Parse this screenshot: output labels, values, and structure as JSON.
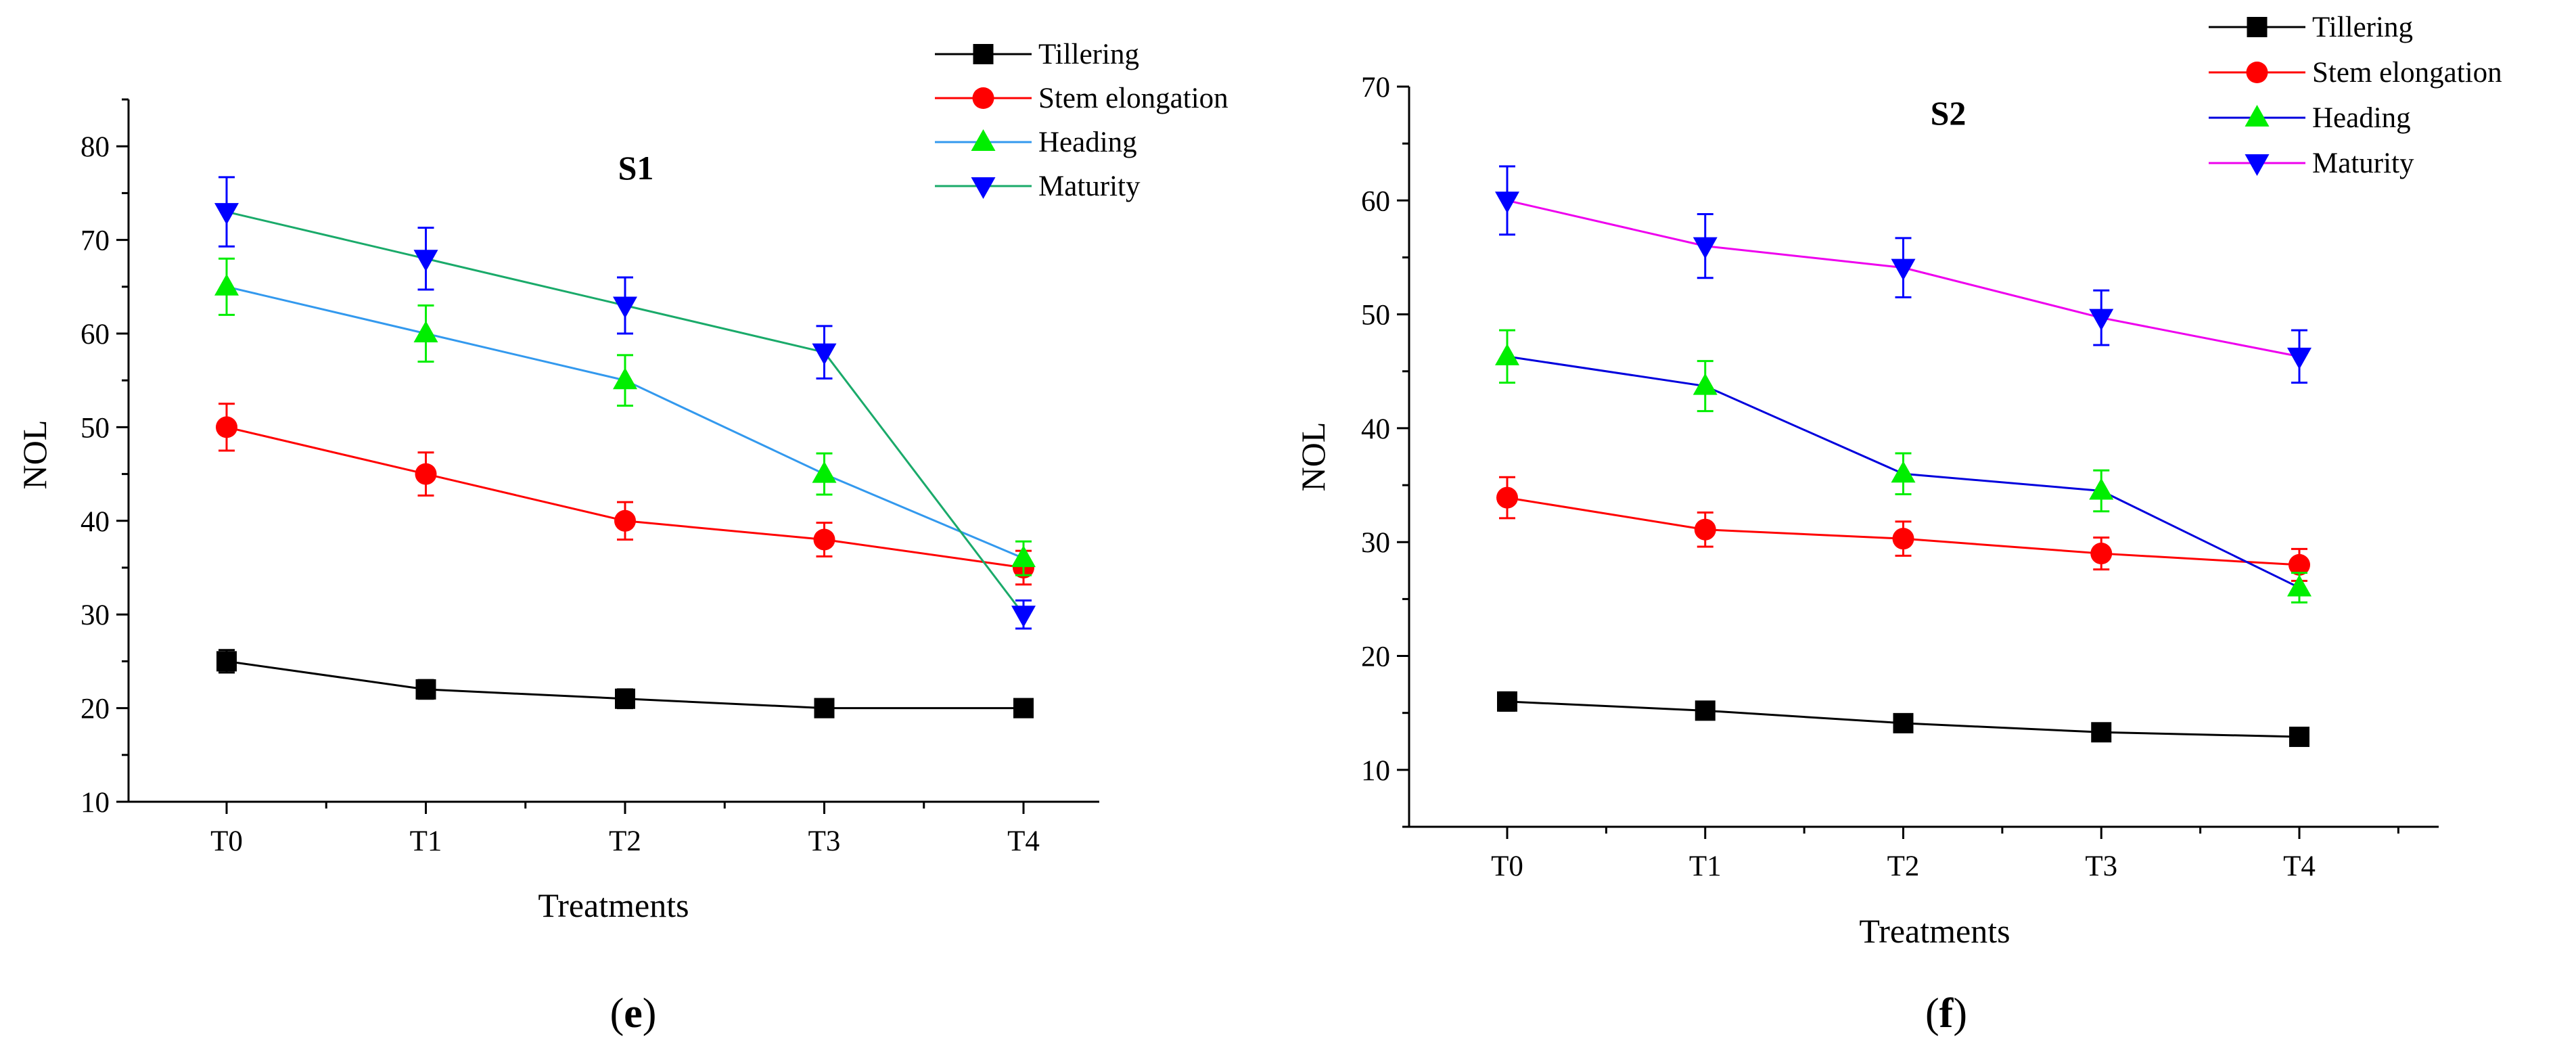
{
  "chart_data": [
    {
      "type": "line",
      "title": "S1",
      "panel_label": [
        "(",
        "e",
        ")"
      ],
      "xlabel": "Treatments",
      "ylabel": "NOL",
      "ylim": [
        10,
        85
      ],
      "yticks": [
        10,
        20,
        30,
        40,
        50,
        60,
        70,
        80
      ],
      "categories": [
        "T0",
        "T1",
        "T2",
        "T3",
        "T4"
      ],
      "error_bars": true,
      "legend_position": "top-right outside",
      "series": [
        {
          "name": "Tillering",
          "marker": "square",
          "color": "#000000",
          "marker_color": "#000000",
          "values": [
            25,
            22,
            21,
            20,
            20
          ],
          "errors": [
            1.2,
            1.0,
            1.0,
            0.8,
            0.8
          ]
        },
        {
          "name": "Stem elongation",
          "marker": "circle",
          "color": "#ff0000",
          "marker_color": "#ff0000",
          "values": [
            50,
            45,
            40,
            38,
            35
          ],
          "errors": [
            2.5,
            2.3,
            2.0,
            1.8,
            1.8
          ]
        },
        {
          "name": "Heading",
          "marker": "triangle-up",
          "color": "#3399ee",
          "marker_color": "#00ee00",
          "values": [
            65,
            60,
            55,
            45,
            36
          ],
          "errors": [
            3.0,
            3.0,
            2.7,
            2.2,
            1.8
          ]
        },
        {
          "name": "Maturity",
          "marker": "triangle-down",
          "color": "#1aaa6a",
          "marker_color": "#0000ff",
          "values": [
            73,
            68,
            63,
            58,
            30
          ],
          "errors": [
            3.7,
            3.3,
            3.0,
            2.8,
            1.5
          ]
        }
      ]
    },
    {
      "type": "line",
      "title": "S2",
      "panel_label": [
        "(",
        "f",
        ")"
      ],
      "xlabel": "Treatments",
      "ylabel": "NOL",
      "ylim": [
        5,
        70
      ],
      "yticks": [
        10,
        20,
        30,
        40,
        50,
        60,
        70
      ],
      "categories": [
        "T0",
        "T1",
        "T2",
        "T3",
        "T4"
      ],
      "error_bars": true,
      "legend_position": "top-right outside",
      "series": [
        {
          "name": "Tillering",
          "marker": "square",
          "color": "#000000",
          "marker_color": "#000000",
          "values": [
            16,
            15.2,
            14.1,
            13.3,
            12.9
          ],
          "errors": [
            0.8,
            0.6,
            0.5,
            0.5,
            0.5
          ]
        },
        {
          "name": "Stem elongation",
          "marker": "circle",
          "color": "#ff0000",
          "marker_color": "#ff0000",
          "values": [
            33.9,
            31.1,
            30.3,
            29,
            28
          ],
          "errors": [
            1.8,
            1.5,
            1.5,
            1.4,
            1.4
          ]
        },
        {
          "name": "Heading",
          "marker": "triangle-up",
          "color": "#0000dd",
          "marker_color": "#00ee00",
          "values": [
            46.3,
            43.7,
            36,
            34.5,
            26
          ],
          "errors": [
            2.3,
            2.2,
            1.8,
            1.8,
            1.3
          ]
        },
        {
          "name": "Maturity",
          "marker": "triangle-down",
          "color": "#ee00ee",
          "marker_color": "#0000ff",
          "values": [
            60,
            56,
            54.1,
            49.7,
            46.3
          ],
          "errors": [
            3.0,
            2.8,
            2.6,
            2.4,
            2.3
          ]
        }
      ]
    }
  ]
}
